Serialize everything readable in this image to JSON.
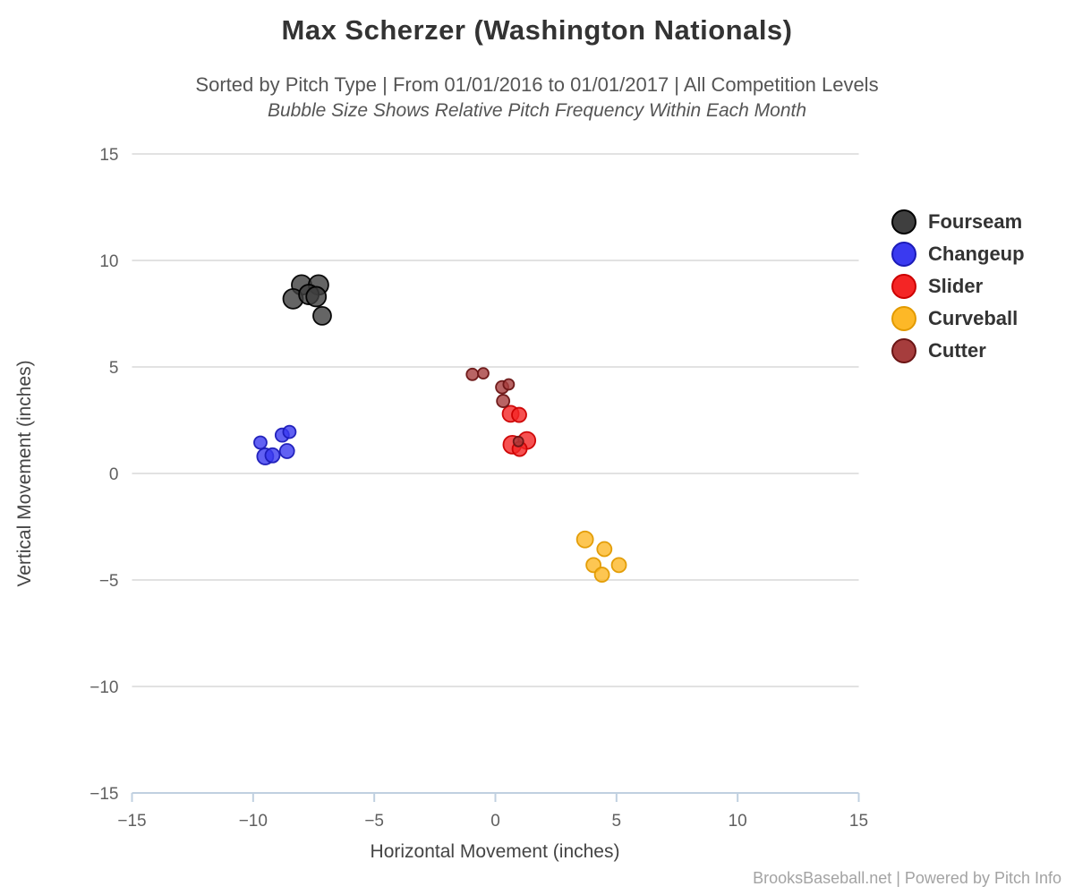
{
  "header": {
    "title": "Max Scherzer (Washington Nationals)",
    "subtitle": "Sorted by Pitch Type | From 01/01/2016 to 01/01/2017 | All Competition Levels",
    "subtitle2": "Bubble Size Shows Relative Pitch Frequency Within Each Month"
  },
  "footer": {
    "credit": "BrooksBaseball.net | Powered by Pitch Info"
  },
  "chart_data": {
    "type": "scatter",
    "title": "Max Scherzer (Washington Nationals)",
    "subtitle": "Sorted by Pitch Type | From 01/01/2016 to 01/01/2017 | All Competition Levels",
    "note": "Bubble Size Shows Relative Pitch Frequency Within Each Month",
    "xlabel": "Horizontal Movement (inches)",
    "ylabel": "Vertical Movement (inches)",
    "xlim": [
      -15,
      15
    ],
    "ylim": [
      -15,
      15
    ],
    "grid": "horizontal",
    "legend_position": "right",
    "axis_line_color": "#c0d0e0",
    "gridline_color": "#d8d8d8",
    "xticks": {
      "values": [
        -15,
        -10,
        -5,
        0,
        5,
        10,
        15
      ],
      "labels": [
        "−15",
        "−10",
        "−5",
        "0",
        "5",
        "10",
        "15"
      ]
    },
    "yticks": {
      "values": [
        -15,
        -10,
        -5,
        0,
        5,
        10,
        15
      ],
      "labels": [
        "−15",
        "−10",
        "−5",
        "0",
        "5",
        "10",
        "15"
      ]
    },
    "series": [
      {
        "name": "Fourseam",
        "color": "#3f3f3f",
        "stroke": "#000000",
        "points": [
          [
            -8.0,
            8.85,
            11
          ],
          [
            -7.3,
            8.85,
            11
          ],
          [
            -8.35,
            8.2,
            11
          ],
          [
            -7.7,
            8.4,
            11
          ],
          [
            -7.4,
            8.3,
            11
          ],
          [
            -7.15,
            7.4,
            10
          ]
        ]
      },
      {
        "name": "Changeup",
        "color": "#3a3af0",
        "stroke": "#1b1bb8",
        "points": [
          [
            -9.7,
            1.45,
            7
          ],
          [
            -8.8,
            1.8,
            7.5
          ],
          [
            -8.5,
            1.95,
            7
          ],
          [
            -9.5,
            0.8,
            9
          ],
          [
            -9.2,
            0.85,
            8
          ],
          [
            -8.6,
            1.05,
            8
          ]
        ]
      },
      {
        "name": "Slider",
        "color": "#f42525",
        "stroke": "#cc0000",
        "points": [
          [
            0.63,
            2.8,
            9
          ],
          [
            0.98,
            2.75,
            8
          ],
          [
            0.7,
            1.35,
            10
          ],
          [
            1.3,
            1.55,
            9.5
          ],
          [
            1.0,
            1.15,
            8
          ]
        ]
      },
      {
        "name": "Curveball",
        "color": "#fdb827",
        "stroke": "#e29a00",
        "points": [
          [
            3.7,
            -3.1,
            9
          ],
          [
            4.5,
            -3.55,
            8
          ],
          [
            4.05,
            -4.3,
            8
          ],
          [
            4.4,
            -4.75,
            8
          ],
          [
            5.1,
            -4.3,
            8
          ]
        ]
      },
      {
        "name": "Cutter",
        "color": "#a63d3d",
        "stroke": "#6b1515",
        "points": [
          [
            -0.95,
            4.65,
            6.5
          ],
          [
            -0.5,
            4.7,
            6
          ],
          [
            0.28,
            4.05,
            7
          ],
          [
            0.55,
            4.18,
            6
          ],
          [
            0.32,
            3.4,
            7
          ],
          [
            0.95,
            1.5,
            5.5
          ]
        ]
      }
    ]
  }
}
